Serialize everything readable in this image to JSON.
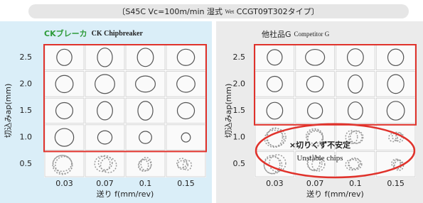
{
  "title": {
    "prefix": "〔S45C Vc=100m/min 湿式",
    "wet": "Wet",
    "suffix": "CCGT09T302タイプ〕"
  },
  "panels": [
    {
      "title": "CKブレーカ",
      "subtitle": "CK Chipbreaker",
      "x_labels": [
        "0.03",
        "0.07",
        "0.1",
        "0.15"
      ],
      "y_labels": [
        "2.5",
        "2.0",
        "1.5",
        "1.0",
        "0.5"
      ],
      "x_axis_label": "送り f(mm/rev)",
      "y_axis_label": "切込みap(mm)"
    },
    {
      "title": "他社品G",
      "subtitle": "Competitor G",
      "x_labels": [
        "0.03",
        "0.07",
        "0.1",
        "0.15"
      ],
      "y_labels": [
        "2.5",
        "2.0",
        "1.5",
        "1.0",
        "0.5"
      ],
      "x_axis_label": "送り f(mm/rev)",
      "y_axis_label": "切込みap(mm)",
      "annotation": {
        "title": "×切りくず不安定",
        "subtitle": "Unstable chips"
      }
    }
  ]
}
